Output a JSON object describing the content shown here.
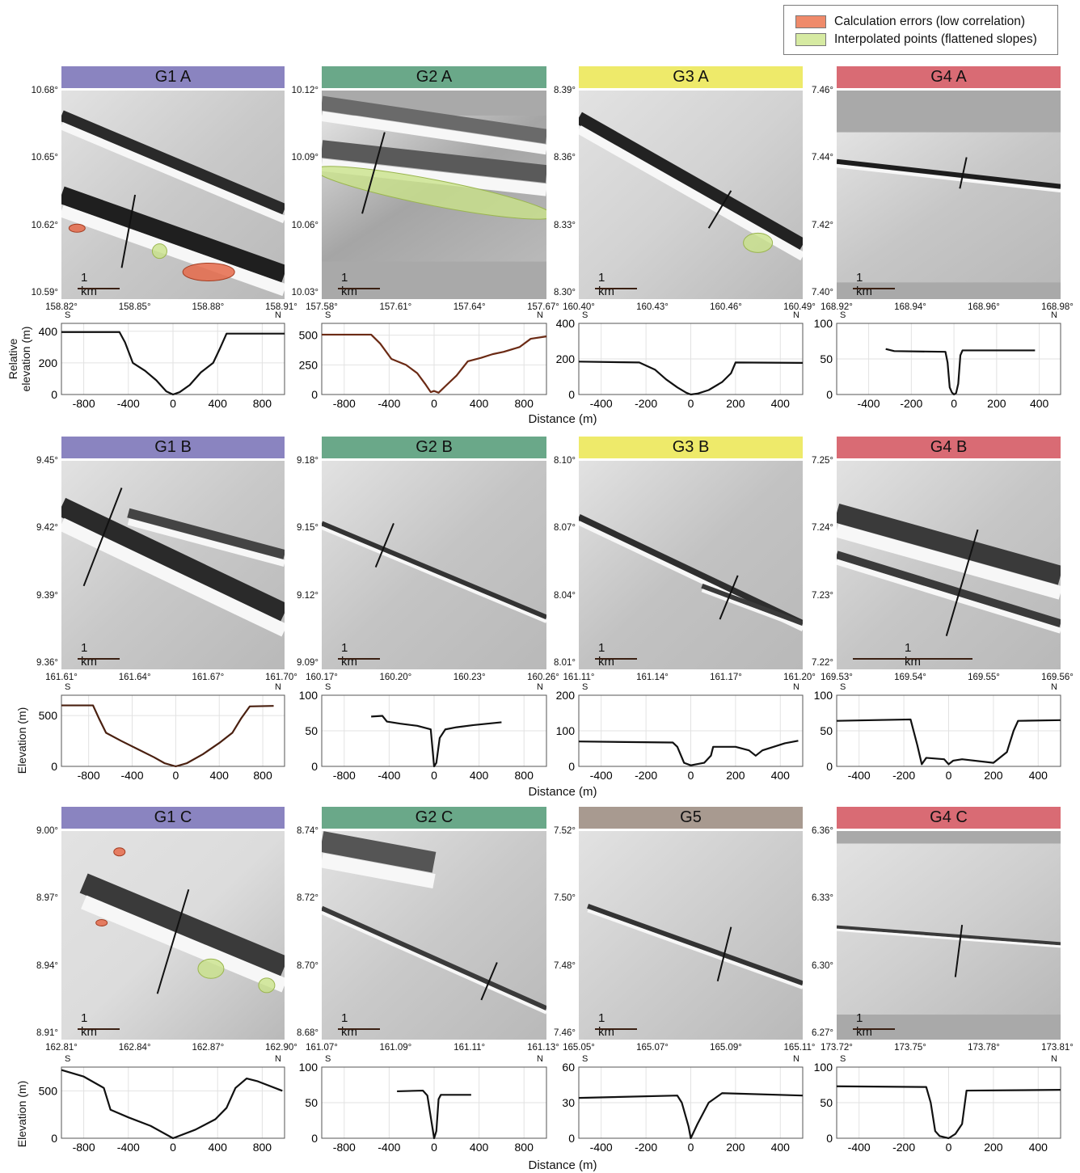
{
  "legend": {
    "items": [
      {
        "label": "Calculation errors (low correlation)",
        "color": "#ef8a6a"
      },
      {
        "label": "Interpolated points (flattened slopes)",
        "color": "#d6eaa2"
      }
    ]
  },
  "colors": {
    "G1": "#8a84c0",
    "G2": "#6aa889",
    "G3": "#eeea6a",
    "G4": "#d96b74",
    "G5": "#a89a90"
  },
  "labels": {
    "row1_ylabel": "Relative elevation (m)",
    "row_ylabel": "Elevation (m)",
    "xlabel": "Distance (m)",
    "south": "S",
    "north": "N",
    "scalebar": "1 km"
  },
  "panels": [
    {
      "title": "G1 A",
      "group": "G1",
      "lat": [
        "10.68°",
        "10.65°",
        "10.62°",
        "10.59°"
      ],
      "lon": [
        "158.82°",
        "158.85°",
        "158.88°",
        "158.91°"
      ]
    },
    {
      "title": "G2 A",
      "group": "G2",
      "lat": [
        "10.12°",
        "10.09°",
        "10.06°",
        "10.03°"
      ],
      "lon": [
        "157.58°",
        "157.61°",
        "157.64°",
        "157.67°"
      ]
    },
    {
      "title": "G3 A",
      "group": "G3",
      "lat": [
        "8.39°",
        "8.36°",
        "8.33°",
        "8.30°"
      ],
      "lon": [
        "160.40°",
        "160.43°",
        "160.46°",
        "160.49°"
      ]
    },
    {
      "title": "G4 A",
      "group": "G4",
      "lat": [
        "7.46°",
        "7.44°",
        "7.42°",
        "7.40°"
      ],
      "lon": [
        "168.92°",
        "168.94°",
        "168.96°",
        "168.98°"
      ]
    },
    {
      "title": "G1 B",
      "group": "G1",
      "lat": [
        "9.45°",
        "9.42°",
        "9.39°",
        "9.36°"
      ],
      "lon": [
        "161.61°",
        "161.64°",
        "161.67°",
        "161.70°"
      ]
    },
    {
      "title": "G2 B",
      "group": "G2",
      "lat": [
        "9.18°",
        "9.15°",
        "9.12°",
        "9.09°"
      ],
      "lon": [
        "160.17°",
        "160.20°",
        "160.23°",
        "160.26°"
      ]
    },
    {
      "title": "G3 B",
      "group": "G3",
      "lat": [
        "8.10°",
        "8.07°",
        "8.04°",
        "8.01°"
      ],
      "lon": [
        "161.11°",
        "161.14°",
        "161.17°",
        "161.20°"
      ]
    },
    {
      "title": "G4 B",
      "group": "G4",
      "lat": [
        "7.25°",
        "7.24°",
        "7.23°",
        "7.22°"
      ],
      "lon": [
        "169.53°",
        "169.54°",
        "169.55°",
        "169.56°"
      ]
    },
    {
      "title": "G1 C",
      "group": "G1",
      "lat": [
        "9.00°",
        "8.97°",
        "8.94°",
        "8.91°"
      ],
      "lon": [
        "162.81°",
        "162.84°",
        "162.87°",
        "162.90°"
      ]
    },
    {
      "title": "G2 C",
      "group": "G2",
      "lat": [
        "8.74°",
        "8.72°",
        "8.70°",
        "8.68°"
      ],
      "lon": [
        "161.07°",
        "161.09°",
        "161.11°",
        "161.13°"
      ]
    },
    {
      "title": "G5",
      "group": "G5",
      "lat": [
        "7.52°",
        "7.50°",
        "7.48°",
        "7.46°"
      ],
      "lon": [
        "165.05°",
        "165.07°",
        "165.09°",
        "165.11°"
      ]
    },
    {
      "title": "G4 C",
      "group": "G4",
      "lat": [
        "6.36°",
        "6.33°",
        "6.30°",
        "6.27°"
      ],
      "lon": [
        "173.72°",
        "173.75°",
        "173.78°",
        "173.81°"
      ]
    }
  ],
  "chart_data": [
    {
      "type": "line",
      "panel": "G1 A",
      "xlim": [
        -1000,
        1000
      ],
      "ylim": [
        0,
        450
      ],
      "xticks": [
        -800,
        -400,
        0,
        400,
        800
      ],
      "yticks": [
        0,
        200,
        400
      ],
      "line_color": "#111111",
      "x": [
        -1000,
        -480,
        -430,
        -360,
        -250,
        -150,
        -60,
        0,
        60,
        150,
        250,
        360,
        420,
        480,
        1000
      ],
      "y": [
        395,
        395,
        330,
        200,
        150,
        90,
        20,
        0,
        15,
        60,
        140,
        200,
        290,
        385,
        385
      ]
    },
    {
      "type": "line",
      "panel": "G2 A",
      "xlim": [
        -1000,
        1000
      ],
      "ylim": [
        0,
        600
      ],
      "xticks": [
        -800,
        -400,
        0,
        400,
        800
      ],
      "yticks": [
        0,
        250,
        500
      ],
      "line_color": "#6b2a14",
      "x": [
        -1000,
        -560,
        -480,
        -380,
        -250,
        -150,
        -80,
        -30,
        0,
        40,
        100,
        200,
        300,
        420,
        520,
        620,
        760,
        860,
        1000
      ],
      "y": [
        505,
        505,
        430,
        300,
        250,
        180,
        90,
        20,
        30,
        15,
        70,
        160,
        280,
        310,
        340,
        360,
        400,
        470,
        490
      ]
    },
    {
      "type": "line",
      "panel": "G3 A",
      "xlim": [
        -500,
        500
      ],
      "ylim": [
        0,
        400
      ],
      "xticks": [
        -400,
        -200,
        0,
        200,
        400
      ],
      "yticks": [
        0,
        200,
        400
      ],
      "line_color": "#111111",
      "x": [
        -500,
        -230,
        -160,
        -110,
        -60,
        -20,
        0,
        30,
        80,
        140,
        180,
        200,
        500
      ],
      "y": [
        185,
        180,
        140,
        85,
        40,
        10,
        0,
        5,
        25,
        70,
        120,
        180,
        178
      ]
    },
    {
      "type": "line",
      "panel": "G4 A",
      "xlim": [
        -550,
        500
      ],
      "ylim": [
        0,
        100
      ],
      "xticks": [
        -400,
        -200,
        0,
        200,
        400
      ],
      "yticks": [
        0,
        50,
        100
      ],
      "line_color": "#111111",
      "x": [
        -320,
        -280,
        -40,
        -30,
        -20,
        -10,
        0,
        10,
        20,
        30,
        40,
        380
      ],
      "y": [
        64,
        61,
        60,
        45,
        10,
        3,
        0,
        2,
        15,
        55,
        62,
        62
      ]
    },
    {
      "type": "line",
      "panel": "G1 B",
      "xlim": [
        -1050,
        1000
      ],
      "ylim": [
        0,
        700
      ],
      "xticks": [
        -800,
        -400,
        0,
        400,
        800
      ],
      "yticks": [
        0,
        500
      ],
      "line_color": "#4a2010",
      "x": [
        -1050,
        -760,
        -700,
        -640,
        -500,
        -350,
        -200,
        -100,
        0,
        100,
        250,
        400,
        520,
        600,
        680,
        900
      ],
      "y": [
        600,
        600,
        460,
        330,
        250,
        170,
        90,
        30,
        0,
        30,
        120,
        230,
        330,
        470,
        590,
        595
      ]
    },
    {
      "type": "line",
      "panel": "G2 B",
      "xlim": [
        -1000,
        1000
      ],
      "ylim": [
        0,
        100
      ],
      "xticks": [
        -800,
        -400,
        0,
        400,
        800
      ],
      "yticks": [
        0,
        50,
        100
      ],
      "line_color": "#111111",
      "x": [
        -560,
        -460,
        -420,
        -300,
        -150,
        -30,
        0,
        20,
        50,
        100,
        200,
        350,
        600
      ],
      "y": [
        70,
        71,
        63,
        60,
        57,
        52,
        0,
        5,
        40,
        52,
        55,
        58,
        62
      ]
    },
    {
      "type": "line",
      "panel": "G3 B",
      "xlim": [
        -500,
        500
      ],
      "ylim": [
        0,
        200
      ],
      "xticks": [
        -400,
        -200,
        0,
        200,
        400
      ],
      "yticks": [
        0,
        100,
        200
      ],
      "line_color": "#111111",
      "x": [
        -500,
        -80,
        -60,
        -30,
        0,
        60,
        90,
        100,
        200,
        260,
        290,
        320,
        420,
        480
      ],
      "y": [
        70,
        67,
        55,
        10,
        3,
        10,
        30,
        55,
        55,
        45,
        30,
        45,
        65,
        72
      ]
    },
    {
      "type": "line",
      "panel": "G4 B",
      "xlim": [
        -500,
        500
      ],
      "ylim": [
        0,
        100
      ],
      "xticks": [
        -400,
        -200,
        0,
        200,
        400
      ],
      "yticks": [
        0,
        50,
        100
      ],
      "line_color": "#111111",
      "x": [
        -500,
        -170,
        -140,
        -120,
        -100,
        -20,
        0,
        20,
        60,
        200,
        260,
        290,
        310,
        500
      ],
      "y": [
        64,
        66,
        30,
        3,
        12,
        10,
        3,
        8,
        10,
        5,
        20,
        50,
        64,
        65
      ]
    },
    {
      "type": "line",
      "panel": "G1 C",
      "xlim": [
        -1000,
        1000
      ],
      "ylim": [
        0,
        750
      ],
      "xticks": [
        -800,
        -400,
        0,
        400,
        800
      ],
      "yticks": [
        0,
        500
      ],
      "line_color": "#111111",
      "x": [
        -1000,
        -800,
        -620,
        -560,
        -400,
        -200,
        0,
        200,
        380,
        480,
        560,
        660,
        760,
        980
      ],
      "y": [
        720,
        650,
        530,
        300,
        220,
        130,
        0,
        90,
        200,
        320,
        530,
        630,
        600,
        500
      ]
    },
    {
      "type": "line",
      "panel": "G2 C",
      "xlim": [
        -1000,
        1000
      ],
      "ylim": [
        0,
        100
      ],
      "xticks": [
        -800,
        -400,
        0,
        400,
        800
      ],
      "yticks": [
        0,
        50,
        100
      ],
      "line_color": "#111111",
      "x": [
        -330,
        -100,
        -60,
        -40,
        -10,
        0,
        20,
        40,
        60,
        330
      ],
      "y": [
        66,
        67,
        60,
        40,
        10,
        0,
        10,
        55,
        61,
        61
      ]
    },
    {
      "type": "line",
      "panel": "G5",
      "xlim": [
        -500,
        500
      ],
      "ylim": [
        0,
        60
      ],
      "xticks": [
        -400,
        -200,
        0,
        200,
        400
      ],
      "yticks": [
        0,
        30,
        60
      ],
      "line_color": "#111111",
      "x": [
        -500,
        -60,
        -40,
        -10,
        0,
        30,
        80,
        140,
        500
      ],
      "y": [
        34,
        36,
        30,
        10,
        0,
        12,
        30,
        38,
        36
      ]
    },
    {
      "type": "line",
      "panel": "G4 C",
      "xlim": [
        -500,
        500
      ],
      "ylim": [
        0,
        100
      ],
      "xticks": [
        -400,
        -200,
        0,
        200,
        400
      ],
      "yticks": [
        0,
        50,
        100
      ],
      "line_color": "#111111",
      "x": [
        -500,
        -100,
        -80,
        -60,
        -40,
        0,
        30,
        60,
        80,
        500
      ],
      "y": [
        73,
        72,
        50,
        10,
        3,
        0,
        6,
        20,
        67,
        68
      ]
    }
  ]
}
